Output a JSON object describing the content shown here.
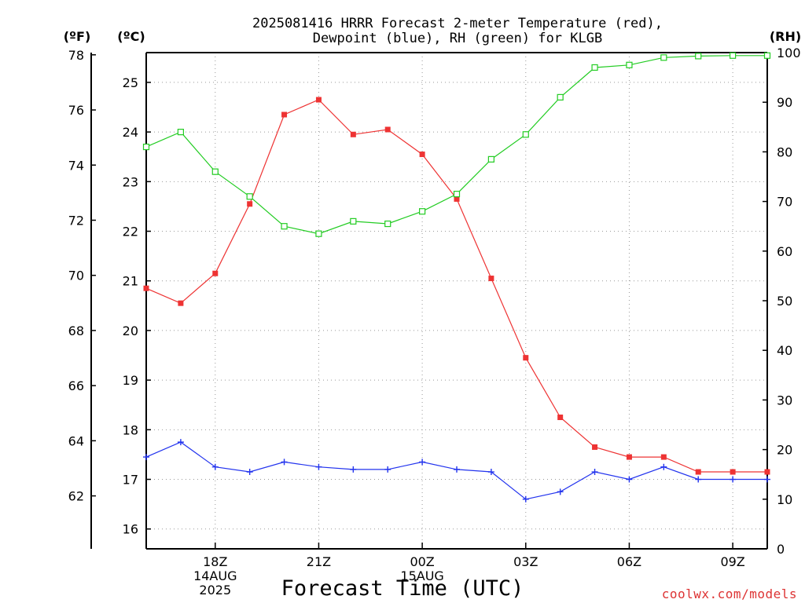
{
  "colors": {
    "temperature": "#ee3333",
    "dewpoint": "#2233ee",
    "rh": "#22cc22",
    "grid": "#999999",
    "axis": "#000000",
    "credit": "#dd3333"
  },
  "chart_data": {
    "type": "line",
    "title": [
      "2025081416 HRRR Forecast 2-meter Temperature (red),",
      "Dewpoint (blue), RH (green) for KLGB"
    ],
    "xlabel": "Forecast Time (UTC)",
    "units": {
      "fahrenheit": "(ºF)",
      "celsius": "(ºC)",
      "rh": "(RH)"
    },
    "credit": "coolwx.com/models",
    "x_hours": [
      16,
      17,
      18,
      19,
      20,
      21,
      22,
      23,
      24,
      25,
      26,
      27,
      28,
      29,
      30,
      31,
      32,
      33,
      34
    ],
    "x_range": [
      16,
      34
    ],
    "x_ticks": [
      {
        "hour": 18,
        "lines": [
          "18Z",
          "14AUG",
          "2025"
        ]
      },
      {
        "hour": 21,
        "lines": [
          "21Z"
        ]
      },
      {
        "hour": 24,
        "lines": [
          "00Z",
          "15AUG"
        ]
      },
      {
        "hour": 27,
        "lines": [
          "03Z"
        ]
      },
      {
        "hour": 30,
        "lines": [
          "06Z"
        ]
      },
      {
        "hour": 33,
        "lines": [
          "09Z"
        ]
      }
    ],
    "y_celsius": {
      "range": [
        15.6,
        25.6
      ],
      "ticks": [
        16,
        17,
        18,
        19,
        20,
        21,
        22,
        23,
        24,
        25
      ]
    },
    "y_fahrenheit": {
      "ticks": [
        62,
        64,
        66,
        68,
        70,
        72,
        74,
        76,
        78
      ]
    },
    "y_rh": {
      "range": [
        0,
        100
      ],
      "ticks": [
        0,
        10,
        20,
        30,
        40,
        50,
        60,
        70,
        80,
        90,
        100
      ]
    },
    "grid": true,
    "series": [
      {
        "name": "Temperature",
        "axis": "celsius",
        "marker": "filled-square",
        "values": [
          20.85,
          20.55,
          21.15,
          22.55,
          24.35,
          24.65,
          23.95,
          24.05,
          23.55,
          22.65,
          21.05,
          19.45,
          18.25,
          17.65,
          17.45,
          17.45,
          17.15,
          17.15,
          17.15
        ]
      },
      {
        "name": "Dewpoint",
        "axis": "celsius",
        "marker": "plus",
        "values": [
          17.45,
          17.75,
          17.25,
          17.15,
          17.35,
          17.25,
          17.2,
          17.2,
          17.35,
          17.2,
          17.15,
          16.6,
          16.75,
          17.15,
          17.0,
          17.25,
          17.0,
          17.0,
          17.0
        ]
      },
      {
        "name": "RH",
        "axis": "rh",
        "marker": "open-square",
        "values": [
          81,
          84,
          76,
          71,
          65,
          63.5,
          66,
          65.5,
          68,
          71.5,
          78.5,
          83.5,
          91,
          97,
          97.5,
          99,
          99.3,
          99.4,
          99.4
        ]
      }
    ]
  }
}
